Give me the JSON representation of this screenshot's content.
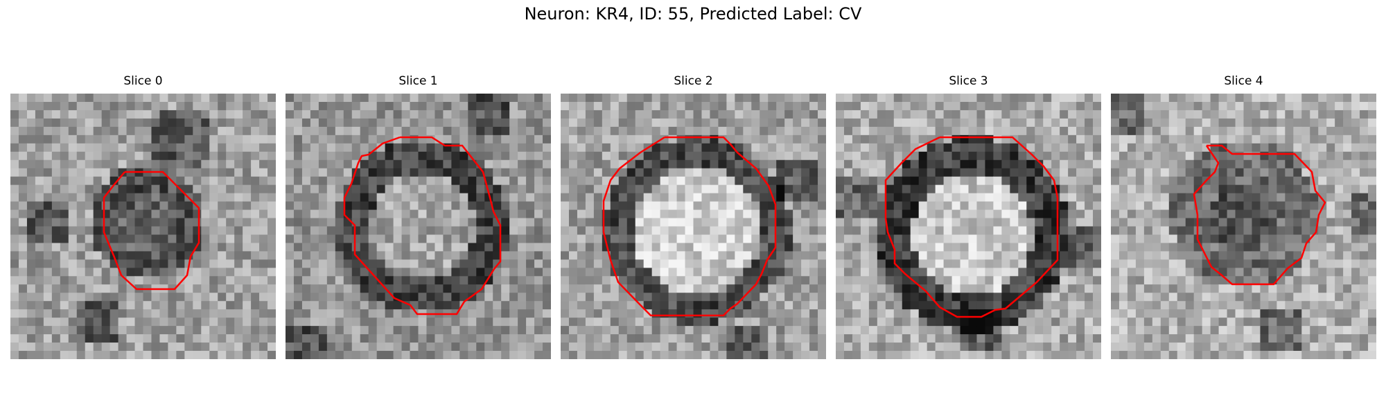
{
  "figure": {
    "title": "Neuron: KR4, ID: 55, Predicted Label: CV"
  },
  "panels": [
    {
      "title": "Slice 0"
    },
    {
      "title": "Slice 1"
    },
    {
      "title": "Slice 2"
    },
    {
      "title": "Slice 3"
    },
    {
      "title": "Slice 4"
    }
  ],
  "colors": {
    "contour": "#ff0000",
    "background": "#ffffff"
  }
}
